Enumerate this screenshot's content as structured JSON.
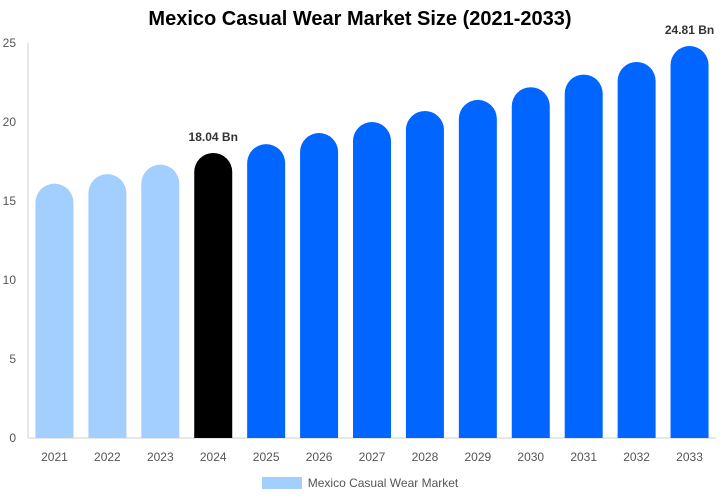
{
  "chart_data": {
    "type": "bar",
    "title": "Mexico Casual Wear Market Size (2021-2033)",
    "categories": [
      "2021",
      "2022",
      "2023",
      "2024",
      "2025",
      "2026",
      "2027",
      "2028",
      "2029",
      "2030",
      "2031",
      "2032",
      "2033"
    ],
    "series": [
      {
        "name": "Mexico Casual Wear Market",
        "values": [
          16.1,
          16.7,
          17.3,
          18.04,
          18.6,
          19.3,
          20.0,
          20.7,
          21.4,
          22.2,
          23.0,
          23.8,
          24.81
        ]
      }
    ],
    "data_labels": {
      "3": "18.04 Bn",
      "12": "24.81 Bn"
    },
    "yticks": [
      "0",
      "5",
      "10",
      "15",
      "20",
      "25"
    ],
    "ylim": [
      0,
      25
    ],
    "grid": false,
    "legend_position": "bottom",
    "colors": {
      "historical": "#a3cfff",
      "base_year": "#000000",
      "forecast": "#0066ff",
      "legend_swatch": "#a3cfff"
    }
  }
}
